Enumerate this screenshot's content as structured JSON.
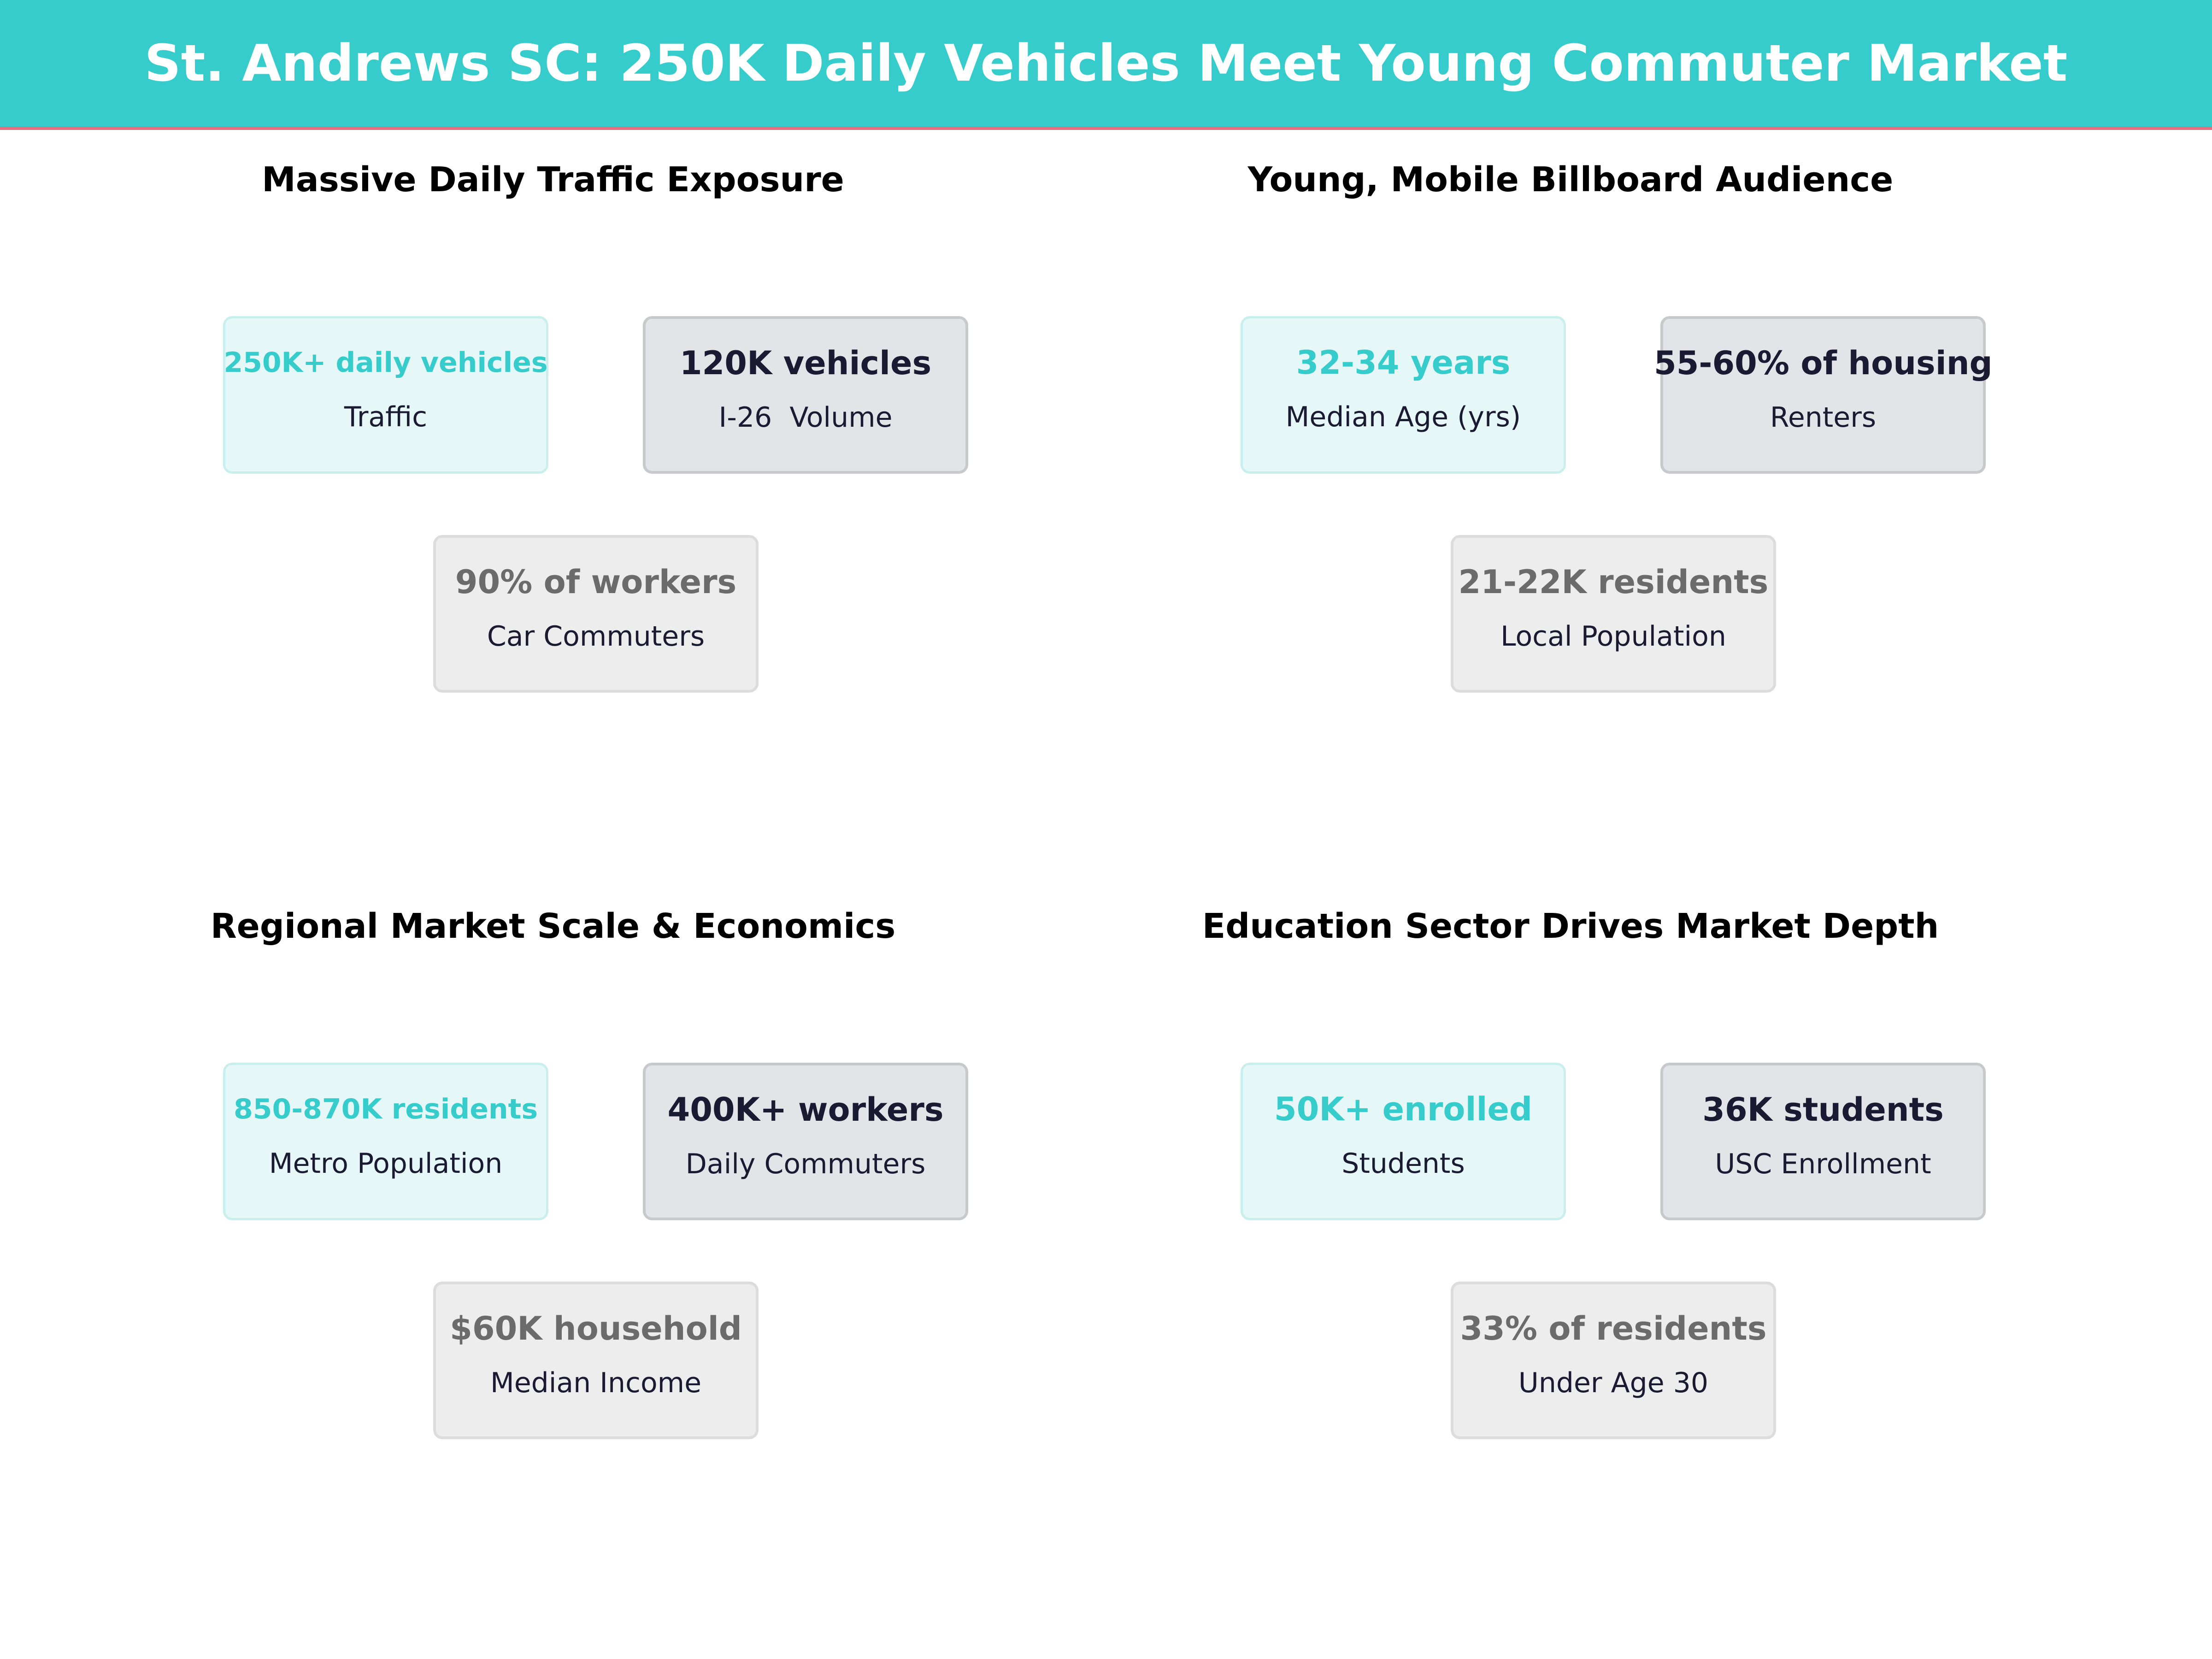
{
  "title": "St. Andrews SC: 250K Daily Vehicles Meet Young Commuter Market",
  "colors": {
    "header_bg": "#36CCCC",
    "header_rule": "#E8707E",
    "teal": "#36CCCC",
    "navy": "#1a1a33",
    "gray": "#6b6b6b"
  },
  "chart_data": [
    {
      "type": "table",
      "title": "Massive Daily Traffic Exposure",
      "cards": [
        {
          "value": "250K+ daily vehicles",
          "label": "Traffic"
        },
        {
          "value": "120K vehicles",
          "label": "I-26  Volume"
        },
        {
          "value": "90% of workers",
          "label": "Car Commuters"
        }
      ]
    },
    {
      "type": "table",
      "title": "Young, Mobile Billboard Audience",
      "cards": [
        {
          "value": "32-34 years",
          "label": "Median Age (yrs)"
        },
        {
          "value": "55-60% of housing",
          "label": "Renters"
        },
        {
          "value": "21-22K residents",
          "label": "Local Population"
        }
      ]
    },
    {
      "type": "table",
      "title": "Regional Market Scale & Economics",
      "cards": [
        {
          "value": "850-870K residents",
          "label": "Metro Population"
        },
        {
          "value": "400K+ workers",
          "label": "Daily Commuters"
        },
        {
          "value": "$60K household",
          "label": "Median Income"
        }
      ]
    },
    {
      "type": "table",
      "title": "Education Sector Drives Market Depth",
      "cards": [
        {
          "value": "50K+ enrolled",
          "label": "Students"
        },
        {
          "value": "36K students",
          "label": "USC Enrollment"
        },
        {
          "value": "33% of residents",
          "label": "Under Age 30"
        }
      ]
    }
  ]
}
